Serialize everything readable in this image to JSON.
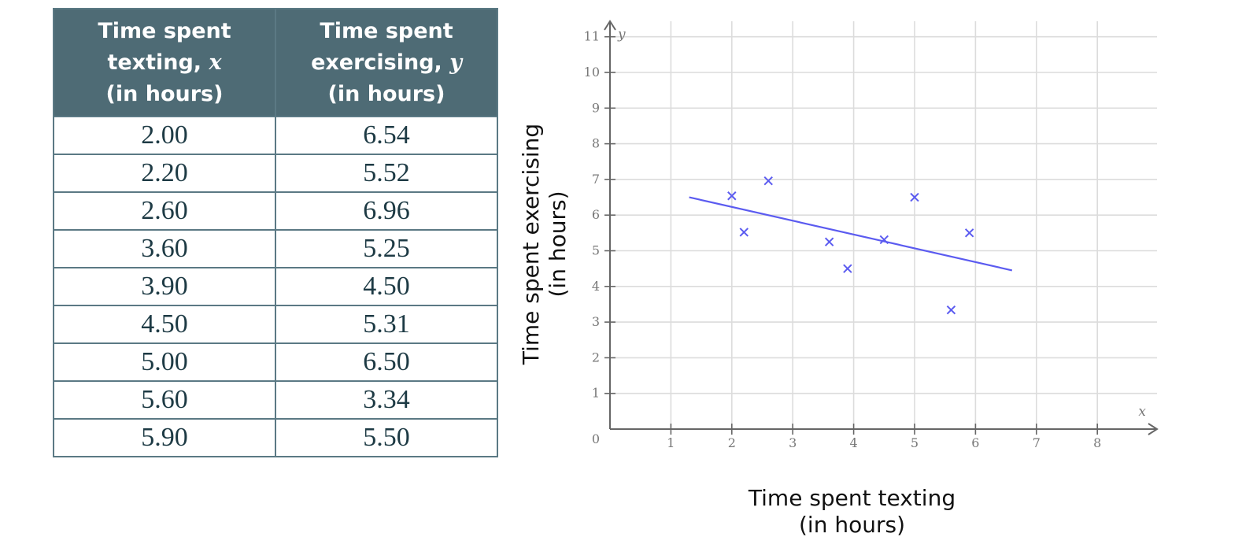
{
  "table": {
    "headers": [
      {
        "line1": "Time spent",
        "line2": "texting, ",
        "var": "x",
        "line3": "(in hours)"
      },
      {
        "line1": "Time spent",
        "line2": "exercising, ",
        "var": "y",
        "line3": "(in hours)"
      }
    ],
    "rows": [
      [
        "2.00",
        "6.54"
      ],
      [
        "2.20",
        "5.52"
      ],
      [
        "2.60",
        "6.96"
      ],
      [
        "3.60",
        "5.25"
      ],
      [
        "3.90",
        "4.50"
      ],
      [
        "4.50",
        "5.31"
      ],
      [
        "5.00",
        "6.50"
      ],
      [
        "5.60",
        "3.34"
      ],
      [
        "5.90",
        "5.50"
      ]
    ]
  },
  "chart_data": {
    "type": "scatter",
    "xlabel": "Time spent texting (in hours)",
    "ylabel": "Time spent exercising (in hours)",
    "xlabel_lines": [
      "Time spent texting",
      "(in hours)"
    ],
    "ylabel_lines": [
      "Time spent exercising",
      "(in hours)"
    ],
    "x_axis_var": "x",
    "y_axis_var": "y",
    "xlim": [
      0,
      9
    ],
    "ylim": [
      0,
      11.3
    ],
    "x_ticks": [
      "1",
      "2",
      "3",
      "4",
      "5",
      "6",
      "7",
      "8"
    ],
    "y_ticks": [
      "1",
      "2",
      "3",
      "4",
      "5",
      "6",
      "7",
      "8",
      "9",
      "10",
      "11"
    ],
    "origin_label": "0",
    "grid": true,
    "marker": "x",
    "color": "#5b5bf0",
    "points": [
      {
        "x": 2.0,
        "y": 6.54
      },
      {
        "x": 2.2,
        "y": 5.52
      },
      {
        "x": 2.6,
        "y": 6.96
      },
      {
        "x": 3.6,
        "y": 5.25
      },
      {
        "x": 3.9,
        "y": 4.5
      },
      {
        "x": 4.5,
        "y": 5.31
      },
      {
        "x": 5.0,
        "y": 6.5
      },
      {
        "x": 5.6,
        "y": 3.34
      },
      {
        "x": 5.9,
        "y": 5.5
      }
    ],
    "trend_line": {
      "x1": 1.3,
      "y1": 6.5,
      "x2": 6.6,
      "y2": 4.45
    }
  }
}
